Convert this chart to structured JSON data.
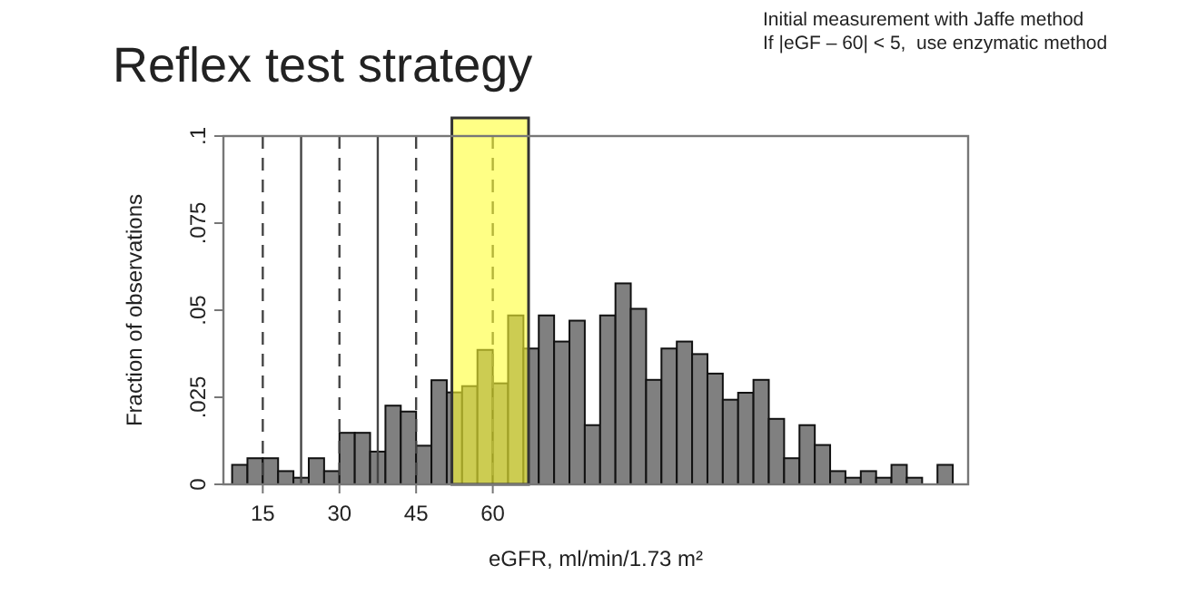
{
  "chart_data": {
    "type": "histogram",
    "title": "Reflex test strategy",
    "annotations": [
      "Initial measurement with Jaffe method",
      "If |eGF – 60| < 5,  use enzymatic method"
    ],
    "xlabel": "eGFR, ml/min/1.73 m²",
    "ylabel": "Fraction of observations",
    "bins": [
      9,
      12,
      15,
      18,
      21,
      24,
      27,
      30,
      33,
      36,
      39,
      42,
      45,
      48,
      51,
      54,
      57,
      60,
      63,
      66,
      69,
      72,
      75,
      78,
      81,
      84,
      87,
      90,
      93,
      96,
      99,
      102,
      105,
      108,
      111,
      114,
      117,
      120,
      123,
      126,
      129,
      132,
      135,
      138,
      141,
      144,
      147,
      150
    ],
    "values": [
      0.0056,
      0.0075,
      0.0075,
      0.0038,
      0.0019,
      0.0075,
      0.0038,
      0.0148,
      0.0148,
      0.0094,
      0.0226,
      0.0209,
      0.0111,
      0.0299,
      0.0264,
      0.0282,
      0.0386,
      0.029,
      0.0485,
      0.039,
      0.0485,
      0.041,
      0.047,
      0.017,
      0.0485,
      0.0577,
      0.0504,
      0.03,
      0.039,
      0.041,
      0.0374,
      0.0318,
      0.0243,
      0.0263,
      0.03,
      0.0188,
      0.0075,
      0.017,
      0.0113,
      0.0038,
      0.0019,
      0.0038,
      0.0019,
      0.0056,
      0.0019,
      0,
      0.0056
    ],
    "color": "#808080",
    "xlim": [
      7.3,
      153
    ],
    "ylim": [
      0,
      0.1
    ],
    "xticks": [
      15,
      30,
      45,
      60
    ],
    "yticks": [
      0,
      {
        "value": 0.025,
        "label": ".025"
      },
      {
        "value": 0.05,
        "label": ".05"
      },
      {
        "value": 0.075,
        "label": ".075"
      },
      {
        "value": 0.1,
        "label": ".1"
      }
    ],
    "ref_lines": [
      {
        "axis": "x",
        "value": 22.5,
        "label": null,
        "line_style": "solid"
      },
      {
        "axis": "x",
        "value": 37.5,
        "label": null,
        "line_style": "solid"
      },
      {
        "axis": "x",
        "value": 15,
        "label": null,
        "line_style": "dashed"
      },
      {
        "axis": "x",
        "value": 30,
        "label": null,
        "line_style": "dashed"
      },
      {
        "axis": "x",
        "value": 45,
        "label": null,
        "line_style": "dashed"
      },
      {
        "axis": "x",
        "value": 60,
        "label": null,
        "line_style": "dashed"
      }
    ],
    "bands": [
      {
        "axis": "x",
        "from": 52,
        "to": 67,
        "label": null,
        "color": "#ffff33"
      }
    ],
    "grid": false
  }
}
